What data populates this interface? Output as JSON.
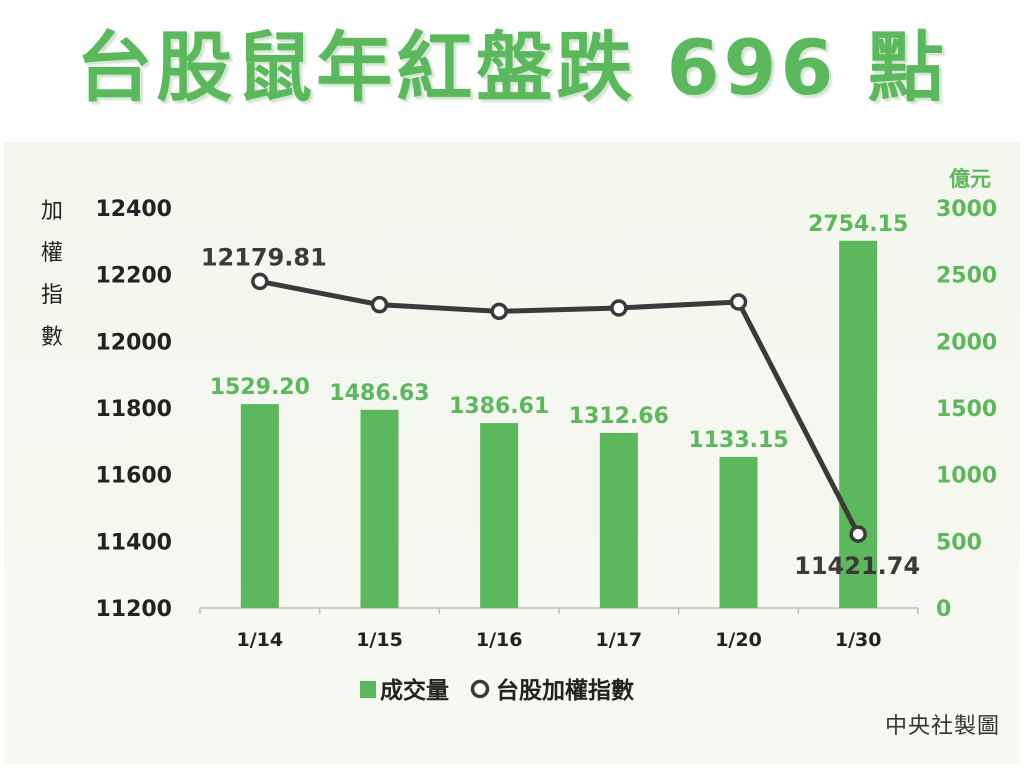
{
  "title": "台股鼠年紅盤跌 696 點",
  "credit": "中央社製圖",
  "colors": {
    "title": "#5cb85c",
    "bar": "#5cb85c",
    "bar_label": "#5cb85c",
    "line": "#3a3a3a",
    "left_axis": "#222222",
    "right_axis": "#5cb85c"
  },
  "chart_data": {
    "type": "bar",
    "categories": [
      "1/14",
      "1/15",
      "1/16",
      "1/17",
      "1/20",
      "1/30"
    ],
    "series": [
      {
        "name": "成交量",
        "type": "bar",
        "axis": "right",
        "values": [
          1529.2,
          1486.63,
          1386.61,
          1312.66,
          1133.15,
          2754.15
        ],
        "labels": [
          "1529.20",
          "1486.63",
          "1386.61",
          "1312.66",
          "1133.15",
          "2754.15"
        ]
      },
      {
        "name": "台股加權指數",
        "type": "line",
        "axis": "left",
        "values": [
          12179.81,
          12110,
          12090,
          12100,
          12118,
          11421.74
        ],
        "labels": [
          "12179.81",
          "",
          "",
          "",
          "",
          "11421.74"
        ]
      }
    ],
    "left_axis": {
      "label": "加權指數",
      "min": 11200,
      "max": 12400,
      "ticks": [
        "12400",
        "12200",
        "12000",
        "11800",
        "11600",
        "11400",
        "11200"
      ]
    },
    "right_axis": {
      "label": "億元",
      "min": 0,
      "max": 3000,
      "ticks": [
        "3000",
        "2500",
        "2000",
        "1500",
        "1000",
        "500",
        "0"
      ]
    },
    "legend": {
      "position": "bottom"
    },
    "grid": false
  }
}
